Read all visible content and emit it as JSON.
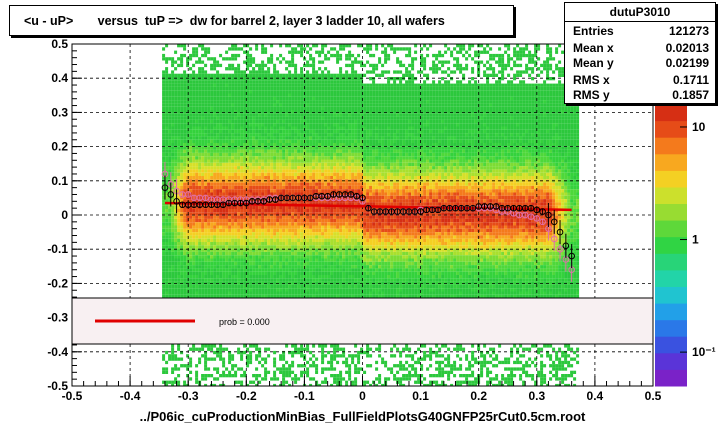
{
  "title": "<u - uP>       versus  tuP =>  dw for barrel 2, layer 3 ladder 10, all wafers",
  "stats": {
    "name": "dutuP3010",
    "rows": [
      {
        "label": "Entries",
        "value": "121273"
      },
      {
        "label": "Mean x",
        "value": "0.02013"
      },
      {
        "label": "Mean y",
        "value": "0.02199"
      },
      {
        "label": "RMS x",
        "value": "0.1711"
      },
      {
        "label": "RMS y",
        "value": "0.1857"
      }
    ]
  },
  "legend": {
    "label": "prob = 0.000",
    "line_color": "#e00000"
  },
  "footer": "../P06ic_cuProductionMinBias_FullFieldPlotsG40GNFP25rCut0.5cm.root",
  "chart_data": {
    "type": "heatmap",
    "xlim": [
      -0.5,
      0.5
    ],
    "ylim": [
      -0.5,
      0.5
    ],
    "x_ticks": [
      "-0.5",
      "-0.4",
      "-0.3",
      "-0.2",
      "-0.1",
      "0",
      "0.1",
      "0.2",
      "0.3",
      "0.4",
      "0.5"
    ],
    "y_ticks": [
      "-0.5",
      "-0.4",
      "-0.3",
      "-0.2",
      "-0.1",
      "0",
      "0.1",
      "0.2",
      "0.3",
      "0.4",
      "0.5"
    ],
    "grid": true,
    "color_scale": {
      "type": "log",
      "labels": [
        "10",
        "1",
        "10⁻¹"
      ],
      "values": [
        10,
        1,
        0.1
      ]
    },
    "profile_black": {
      "x": [
        -0.34,
        -0.33,
        -0.32,
        -0.31,
        -0.3,
        -0.29,
        -0.28,
        -0.27,
        -0.26,
        -0.25,
        -0.24,
        -0.23,
        -0.22,
        -0.21,
        -0.2,
        -0.19,
        -0.18,
        -0.17,
        -0.16,
        -0.15,
        -0.14,
        -0.13,
        -0.12,
        -0.11,
        -0.1,
        -0.09,
        -0.08,
        -0.07,
        -0.06,
        -0.05,
        -0.04,
        -0.03,
        -0.02,
        -0.01,
        0.0,
        0.01,
        0.02,
        0.03,
        0.04,
        0.05,
        0.06,
        0.07,
        0.08,
        0.09,
        0.1,
        0.11,
        0.12,
        0.13,
        0.14,
        0.15,
        0.16,
        0.17,
        0.18,
        0.19,
        0.2,
        0.21,
        0.22,
        0.23,
        0.24,
        0.25,
        0.26,
        0.27,
        0.28,
        0.29,
        0.3,
        0.31,
        0.32,
        0.33,
        0.34,
        0.35,
        0.36
      ],
      "y": [
        0.08,
        0.06,
        0.04,
        0.03,
        0.03,
        0.03,
        0.03,
        0.03,
        0.03,
        0.03,
        0.03,
        0.035,
        0.035,
        0.035,
        0.035,
        0.04,
        0.04,
        0.04,
        0.045,
        0.045,
        0.05,
        0.05,
        0.05,
        0.05,
        0.05,
        0.05,
        0.055,
        0.055,
        0.055,
        0.06,
        0.06,
        0.06,
        0.06,
        0.055,
        0.05,
        0.02,
        0.01,
        0.01,
        0.01,
        0.01,
        0.01,
        0.01,
        0.01,
        0.01,
        0.01,
        0.015,
        0.015,
        0.015,
        0.02,
        0.02,
        0.02,
        0.02,
        0.02,
        0.02,
        0.025,
        0.025,
        0.025,
        0.025,
        0.02,
        0.02,
        0.02,
        0.02,
        0.02,
        0.02,
        0.015,
        0.01,
        0.0,
        -0.02,
        -0.05,
        -0.09,
        -0.12
      ]
    },
    "profile_pink": {
      "x": [
        -0.34,
        -0.33,
        -0.32,
        -0.31,
        -0.3,
        -0.29,
        -0.28,
        -0.27,
        -0.26,
        -0.25,
        -0.24,
        -0.23,
        -0.22,
        -0.21,
        -0.2,
        -0.19,
        -0.18,
        -0.17,
        -0.16,
        -0.15,
        -0.14,
        -0.13,
        -0.12,
        -0.11,
        -0.1,
        -0.09,
        -0.08,
        -0.07,
        -0.06,
        -0.05,
        -0.04,
        -0.03,
        -0.02,
        -0.01,
        0.0,
        0.01,
        0.02,
        0.03,
        0.04,
        0.05,
        0.06,
        0.07,
        0.08,
        0.09,
        0.1,
        0.11,
        0.12,
        0.13,
        0.14,
        0.15,
        0.16,
        0.17,
        0.18,
        0.19,
        0.2,
        0.21,
        0.22,
        0.23,
        0.24,
        0.25,
        0.26,
        0.27,
        0.28,
        0.29,
        0.3,
        0.31,
        0.32,
        0.33,
        0.34,
        0.35,
        0.36
      ],
      "y": [
        0.12,
        0.09,
        0.07,
        0.06,
        0.06,
        0.05,
        0.05,
        0.05,
        0.045,
        0.045,
        0.045,
        0.045,
        0.045,
        0.045,
        0.045,
        0.045,
        0.045,
        0.045,
        0.05,
        0.05,
        0.05,
        0.05,
        0.05,
        0.05,
        0.05,
        0.05,
        0.05,
        0.05,
        0.05,
        0.05,
        0.05,
        0.05,
        0.05,
        0.05,
        0.04,
        0.02,
        0.01,
        0.01,
        0.01,
        0.01,
        0.01,
        0.01,
        0.01,
        0.01,
        0.015,
        0.015,
        0.015,
        0.015,
        0.02,
        0.02,
        0.02,
        0.02,
        0.02,
        0.02,
        0.02,
        0.02,
        0.02,
        0.015,
        0.01,
        0.01,
        0.005,
        0.0,
        0.0,
        -0.005,
        -0.01,
        -0.02,
        -0.04,
        -0.07,
        -0.1,
        -0.13,
        -0.16
      ]
    },
    "fit_line": {
      "x": [
        -0.34,
        0.36
      ],
      "y": [
        0.035,
        0.015
      ]
    }
  }
}
